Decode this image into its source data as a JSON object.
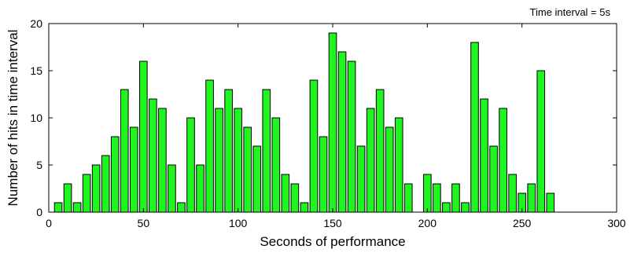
{
  "chart_data": {
    "type": "bar",
    "xlabel": "Seconds of performance",
    "ylabel": "Number of hits in time interval",
    "annotation": "Time interval = 5s",
    "xlim": [
      0,
      300
    ],
    "ylim": [
      0,
      20
    ],
    "xticks": [
      0,
      50,
      100,
      150,
      200,
      250,
      300
    ],
    "yticks": [
      0,
      5,
      10,
      15,
      20
    ],
    "bar_width": 4,
    "bar_color": "#1ff51f",
    "grid": false,
    "x": [
      5,
      10,
      15,
      20,
      25,
      30,
      35,
      40,
      45,
      50,
      55,
      60,
      65,
      70,
      75,
      80,
      85,
      90,
      95,
      100,
      105,
      110,
      115,
      120,
      125,
      130,
      135,
      140,
      145,
      150,
      155,
      160,
      165,
      170,
      175,
      180,
      185,
      190,
      195,
      200,
      205,
      210,
      215,
      220,
      225,
      230,
      235,
      240,
      245,
      250,
      255,
      260,
      265,
      270
    ],
    "values": [
      1,
      3,
      1,
      4,
      5,
      6,
      8,
      13,
      9,
      16,
      12,
      11,
      5,
      1,
      10,
      5,
      14,
      11,
      13,
      11,
      9,
      7,
      13,
      10,
      4,
      3,
      1,
      14,
      8,
      19,
      17,
      16,
      7,
      11,
      13,
      9,
      10,
      3,
      0,
      4,
      3,
      1,
      3,
      1,
      18,
      12,
      7,
      11,
      4,
      2,
      3,
      15,
      2,
      0
    ]
  }
}
